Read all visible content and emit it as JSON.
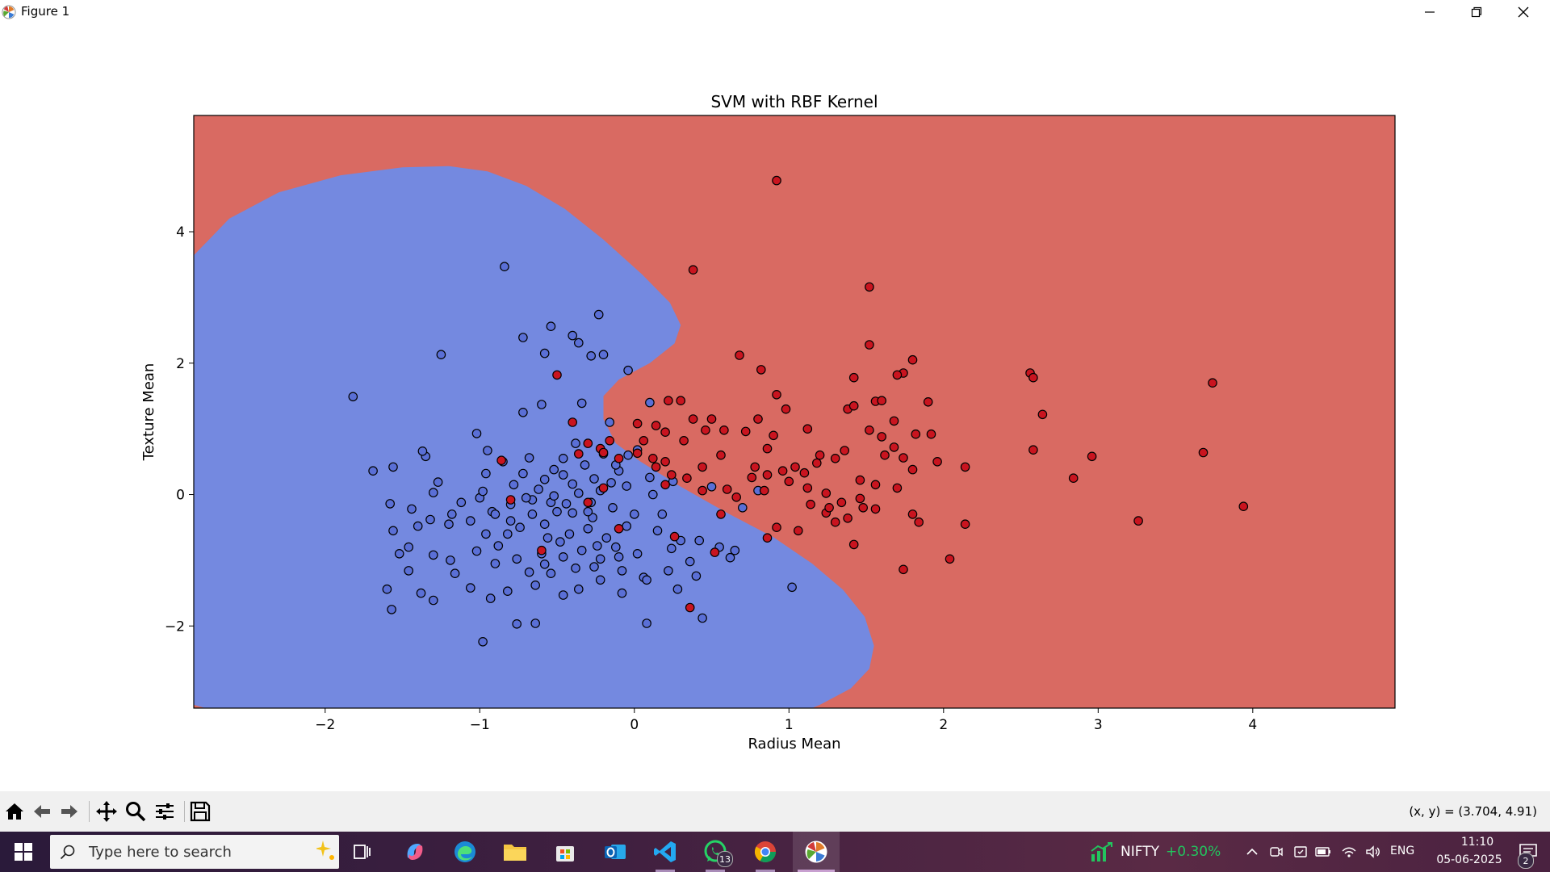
{
  "window": {
    "title": "Figure 1"
  },
  "chart_data": {
    "type": "scatter",
    "title": "SVM with RBF Kernel",
    "xlabel": "Radius Mean",
    "ylabel": "Texture Mean",
    "xlim": [
      -2.85,
      4.92
    ],
    "ylim": [
      -3.25,
      5.77
    ],
    "xticks": [
      -2,
      -1,
      0,
      1,
      2,
      3,
      4
    ],
    "yticks": [
      -2,
      0,
      2,
      4
    ],
    "xtick_labels": [
      "−2",
      "−1",
      "0",
      "1",
      "2",
      "3",
      "4"
    ],
    "ytick_labels": [
      "−2",
      "0",
      "2",
      "4"
    ],
    "grid": false,
    "decision_region_colors": {
      "class_0": "#7489E0",
      "class_1": "#D96A62"
    },
    "point_colors": {
      "class_0": "#5a6fd6",
      "class_1": "#c9141f"
    },
    "series": [
      {
        "class": 0,
        "points": [
          [
            -1.82,
            1.49
          ],
          [
            -0.84,
            3.47
          ],
          [
            -0.23,
            2.74
          ],
          [
            -0.54,
            2.56
          ],
          [
            -0.72,
            2.39
          ],
          [
            -1.25,
            2.13
          ],
          [
            -0.58,
            2.15
          ],
          [
            -0.2,
            2.13
          ],
          [
            -0.4,
            2.42
          ],
          [
            -0.36,
            2.31
          ],
          [
            -0.28,
            2.11
          ],
          [
            -0.04,
            1.89
          ],
          [
            -0.6,
            1.37
          ],
          [
            -0.72,
            1.25
          ],
          [
            -0.34,
            1.39
          ],
          [
            -1.02,
            0.93
          ],
          [
            -0.16,
            1.1
          ],
          [
            -0.38,
            0.78
          ],
          [
            -0.04,
            0.6
          ],
          [
            0.02,
            0.68
          ],
          [
            0.1,
            1.4
          ],
          [
            -1.35,
            0.58
          ],
          [
            -1.37,
            0.66
          ],
          [
            -1.56,
            0.42
          ],
          [
            -1.69,
            0.36
          ],
          [
            -0.95,
            0.67
          ],
          [
            -0.85,
            0.5
          ],
          [
            -0.68,
            0.56
          ],
          [
            -0.52,
            0.38
          ],
          [
            -0.46,
            0.55
          ],
          [
            -0.32,
            0.45
          ],
          [
            -0.2,
            0.62
          ],
          [
            -0.1,
            0.36
          ],
          [
            0.1,
            0.26
          ],
          [
            -1.27,
            0.19
          ],
          [
            -1.3,
            0.03
          ],
          [
            -0.96,
            0.32
          ],
          [
            -0.78,
            0.15
          ],
          [
            -0.58,
            0.23
          ],
          [
            -0.4,
            0.16
          ],
          [
            -0.22,
            0.06
          ],
          [
            -0.05,
            0.13
          ],
          [
            0.12,
            0.0
          ],
          [
            0.25,
            0.2
          ],
          [
            -1.58,
            -0.14
          ],
          [
            -1.44,
            -0.22
          ],
          [
            -1.32,
            -0.38
          ],
          [
            -1.2,
            -0.45
          ],
          [
            -1.06,
            -0.4
          ],
          [
            -0.92,
            -0.26
          ],
          [
            -0.8,
            -0.15
          ],
          [
            -0.66,
            -0.08
          ],
          [
            -0.54,
            -0.12
          ],
          [
            -0.4,
            -0.28
          ],
          [
            -0.27,
            -0.35
          ],
          [
            -0.14,
            -0.2
          ],
          [
            0.0,
            -0.3
          ],
          [
            0.15,
            -0.55
          ],
          [
            0.3,
            -0.7
          ],
          [
            0.55,
            -0.8
          ],
          [
            0.65,
            -0.85
          ],
          [
            0.62,
            -0.96
          ],
          [
            -1.56,
            -0.55
          ],
          [
            -1.46,
            -0.8
          ],
          [
            -1.3,
            -0.92
          ],
          [
            -1.19,
            -1.0
          ],
          [
            -1.02,
            -0.86
          ],
          [
            -0.9,
            -1.05
          ],
          [
            -0.76,
            -0.98
          ],
          [
            -0.6,
            -0.9
          ],
          [
            -0.48,
            -0.72
          ],
          [
            -0.34,
            -0.85
          ],
          [
            -0.22,
            -0.98
          ],
          [
            -0.08,
            -1.16
          ],
          [
            0.06,
            -1.26
          ],
          [
            0.22,
            -1.16
          ],
          [
            0.4,
            -1.24
          ],
          [
            -1.6,
            -1.44
          ],
          [
            -1.46,
            -1.16
          ],
          [
            -1.38,
            -1.5
          ],
          [
            -1.3,
            -1.61
          ],
          [
            -1.06,
            -1.42
          ],
          [
            -0.93,
            -1.58
          ],
          [
            -0.82,
            -1.47
          ],
          [
            -0.64,
            -1.38
          ],
          [
            -0.46,
            -1.53
          ],
          [
            -0.36,
            -1.44
          ],
          [
            -0.22,
            -1.3
          ],
          [
            -0.08,
            -1.5
          ],
          [
            0.08,
            -1.3
          ],
          [
            0.28,
            -1.44
          ],
          [
            0.44,
            -1.88
          ],
          [
            -1.57,
            -1.75
          ],
          [
            -0.76,
            -1.97
          ],
          [
            -0.64,
            -1.96
          ],
          [
            -0.98,
            -2.24
          ],
          [
            0.08,
            -1.96
          ],
          [
            1.02,
            -1.41
          ],
          [
            0.5,
            0.12
          ],
          [
            0.7,
            -0.2
          ],
          [
            0.8,
            0.06
          ],
          [
            -0.9,
            -0.3
          ],
          [
            -0.82,
            -0.6
          ],
          [
            -0.74,
            -0.5
          ],
          [
            -0.66,
            -0.3
          ],
          [
            -0.58,
            -0.45
          ],
          [
            -0.5,
            -0.26
          ],
          [
            -0.42,
            -0.6
          ],
          [
            -0.3,
            -0.52
          ],
          [
            -0.18,
            -0.66
          ],
          [
            -0.05,
            -0.48
          ],
          [
            -0.7,
            -0.05
          ],
          [
            -0.62,
            0.08
          ],
          [
            -0.52,
            -0.02
          ],
          [
            -0.44,
            -0.14
          ],
          [
            -0.36,
            0.02
          ],
          [
            -0.26,
            0.24
          ],
          [
            -0.15,
            0.18
          ],
          [
            -1.12,
            -0.12
          ],
          [
            -1.0,
            -0.05
          ],
          [
            -0.96,
            -0.6
          ],
          [
            -0.88,
            -0.78
          ],
          [
            -0.56,
            -0.66
          ],
          [
            -0.46,
            -0.95
          ],
          [
            -0.26,
            -1.1
          ],
          [
            -0.12,
            -0.8
          ],
          [
            0.02,
            -0.9
          ],
          [
            0.18,
            -0.3
          ],
          [
            -1.52,
            -0.9
          ],
          [
            -1.4,
            -0.48
          ],
          [
            -0.98,
            0.05
          ],
          [
            -0.72,
            0.32
          ],
          [
            -0.46,
            0.3
          ],
          [
            -0.28,
            -0.12
          ],
          [
            -0.12,
            0.45
          ],
          [
            0.24,
            -0.82
          ],
          [
            0.42,
            -0.7
          ],
          [
            -1.18,
            -0.3
          ],
          [
            -0.68,
            -1.18
          ],
          [
            -0.54,
            -1.2
          ],
          [
            -0.38,
            -1.12
          ],
          [
            -0.24,
            -0.78
          ],
          [
            -0.1,
            -0.95
          ],
          [
            0.36,
            -1.02
          ],
          [
            -1.16,
            -1.2
          ],
          [
            -0.8,
            -0.4
          ],
          [
            -0.58,
            -1.06
          ],
          [
            -0.3,
            -0.26
          ]
        ]
      },
      {
        "class": 1,
        "points": [
          [
            0.92,
            4.78
          ],
          [
            1.52,
            3.16
          ],
          [
            0.38,
            3.42
          ],
          [
            1.52,
            2.28
          ],
          [
            0.68,
            2.12
          ],
          [
            1.8,
            2.05
          ],
          [
            1.74,
            1.85
          ],
          [
            1.7,
            1.82
          ],
          [
            0.82,
            1.9
          ],
          [
            1.42,
            1.78
          ],
          [
            2.56,
            1.85
          ],
          [
            2.58,
            1.78
          ],
          [
            3.74,
            1.7
          ],
          [
            0.92,
            1.52
          ],
          [
            1.56,
            1.42
          ],
          [
            1.6,
            1.43
          ],
          [
            1.9,
            1.41
          ],
          [
            1.38,
            1.3
          ],
          [
            1.42,
            1.35
          ],
          [
            2.64,
            1.22
          ],
          [
            0.22,
            1.43
          ],
          [
            0.3,
            1.43
          ],
          [
            0.5,
            1.15
          ],
          [
            0.38,
            1.15
          ],
          [
            0.8,
            1.15
          ],
          [
            0.9,
            0.9
          ],
          [
            0.14,
            1.05
          ],
          [
            0.2,
            0.95
          ],
          [
            0.46,
            0.98
          ],
          [
            0.58,
            0.98
          ],
          [
            1.68,
            1.12
          ],
          [
            1.82,
            0.92
          ],
          [
            2.58,
            0.68
          ],
          [
            3.68,
            0.64
          ],
          [
            2.96,
            0.58
          ],
          [
            1.62,
            0.6
          ],
          [
            1.96,
            0.5
          ],
          [
            1.68,
            0.72
          ],
          [
            1.2,
            0.6
          ],
          [
            1.3,
            0.55
          ],
          [
            1.36,
            0.67
          ],
          [
            1.04,
            0.42
          ],
          [
            1.1,
            0.33
          ],
          [
            0.96,
            0.36
          ],
          [
            0.86,
            0.3
          ],
          [
            0.78,
            0.42
          ],
          [
            0.56,
            0.6
          ],
          [
            0.44,
            0.42
          ],
          [
            0.24,
            0.3
          ],
          [
            0.12,
            0.55
          ],
          [
            0.02,
            0.63
          ],
          [
            -0.1,
            0.55
          ],
          [
            -0.22,
            0.7
          ],
          [
            -0.3,
            0.78
          ],
          [
            -0.36,
            0.62
          ],
          [
            0.06,
            0.82
          ],
          [
            0.02,
            1.08
          ],
          [
            -0.16,
            0.82
          ],
          [
            2.14,
            0.42
          ],
          [
            1.8,
            0.38
          ],
          [
            1.74,
            0.56
          ],
          [
            1.46,
            0.22
          ],
          [
            1.56,
            0.15
          ],
          [
            1.7,
            0.1
          ],
          [
            2.84,
            0.25
          ],
          [
            1.0,
            0.2
          ],
          [
            1.12,
            0.1
          ],
          [
            1.24,
            0.02
          ],
          [
            1.34,
            -0.12
          ],
          [
            1.48,
            -0.2
          ],
          [
            1.56,
            -0.22
          ],
          [
            1.38,
            -0.36
          ],
          [
            1.14,
            -0.15
          ],
          [
            1.24,
            -0.28
          ],
          [
            1.3,
            -0.42
          ],
          [
            1.8,
            -0.3
          ],
          [
            1.84,
            -0.42
          ],
          [
            2.14,
            -0.45
          ],
          [
            3.26,
            -0.4
          ],
          [
            3.94,
            -0.18
          ],
          [
            0.86,
            -0.66
          ],
          [
            0.92,
            -0.5
          ],
          [
            1.06,
            -0.55
          ],
          [
            1.42,
            -0.76
          ],
          [
            0.56,
            -0.3
          ],
          [
            0.44,
            0.06
          ],
          [
            0.6,
            0.08
          ],
          [
            0.34,
            0.25
          ],
          [
            0.2,
            0.5
          ],
          [
            0.14,
            0.42
          ],
          [
            2.04,
            -0.98
          ],
          [
            1.74,
            -1.14
          ],
          [
            0.36,
            -1.72
          ],
          [
            0.52,
            -0.88
          ],
          [
            0.2,
            0.15
          ],
          [
            -0.5,
            1.82
          ],
          [
            -0.86,
            0.52
          ],
          [
            -0.4,
            1.1
          ],
          [
            -0.8,
            -0.08
          ],
          [
            -0.6,
            -0.85
          ],
          [
            -0.2,
            0.1
          ],
          [
            -0.1,
            -0.52
          ],
          [
            -0.3,
            -0.12
          ],
          [
            -0.2,
            0.64
          ],
          [
            0.26,
            -0.64
          ],
          [
            1.52,
            0.98
          ],
          [
            1.46,
            -0.06
          ],
          [
            0.76,
            0.26
          ],
          [
            0.66,
            -0.04
          ],
          [
            0.86,
            0.7
          ],
          [
            0.98,
            1.3
          ],
          [
            1.12,
            1.0
          ],
          [
            0.72,
            0.96
          ],
          [
            0.32,
            0.82
          ],
          [
            0.84,
            0.06
          ],
          [
            1.18,
            0.48
          ],
          [
            1.26,
            -0.2
          ],
          [
            1.6,
            0.88
          ],
          [
            1.92,
            0.92
          ]
        ]
      }
    ]
  },
  "toolbar": {
    "buttons": [
      {
        "name": "home-icon"
      },
      {
        "name": "back-arrow-icon"
      },
      {
        "name": "forward-arrow-icon"
      },
      {
        "name": "pan-icon"
      },
      {
        "name": "zoom-icon"
      },
      {
        "name": "configure-subplots-icon"
      },
      {
        "name": "save-figure-icon"
      }
    ],
    "coords": "(x, y) = (3.704, 4.91)"
  },
  "taskbar": {
    "search_placeholder": "Type here to search",
    "whatsapp_badge": "13",
    "nifty_label": "NIFTY",
    "nifty_change": "+0.30%",
    "language": "ENG",
    "time": "11:10",
    "date": "05-06-2025",
    "notification_count": "2"
  }
}
